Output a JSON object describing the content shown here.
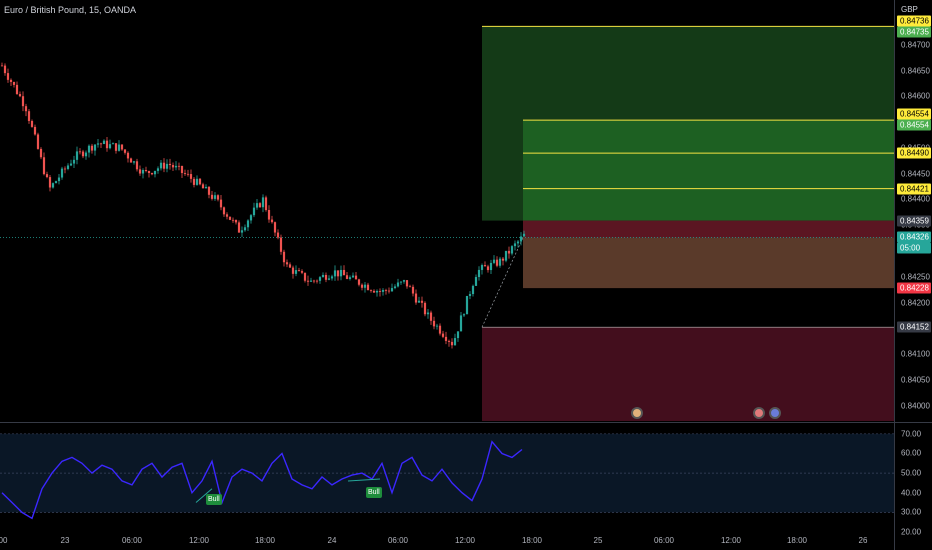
{
  "header": {
    "symbol_title": "Euro / British Pound, 15, OANDA",
    "currency_label": "GBP"
  },
  "price_axis": {
    "ticks": [
      "0.84700",
      "0.84650",
      "0.84600",
      "0.84550",
      "0.84500",
      "0.84450",
      "0.84400",
      "0.84350",
      "0.84300",
      "0.84250",
      "0.84200",
      "0.84150",
      "0.84100",
      "0.84050",
      "0.84000"
    ],
    "tags": [
      {
        "text": "0.84736",
        "bg": "#ffeb3b",
        "fg": "#000000"
      },
      {
        "text": "0.84735",
        "bg": "#4caf50",
        "fg": "#ffffff"
      },
      {
        "text": "0.84554",
        "bg": "#ffeb3b",
        "fg": "#000000"
      },
      {
        "text": "0.84554",
        "bg": "#4caf50",
        "fg": "#ffffff"
      },
      {
        "text": "0.84490",
        "bg": "#ffeb3b",
        "fg": "#000000"
      },
      {
        "text": "0.84421",
        "bg": "#ffeb3b",
        "fg": "#000000"
      },
      {
        "text": "0.84359",
        "bg": "#363a45",
        "fg": "#ffffff"
      },
      {
        "text": "0.84326",
        "bg": "#26a69a",
        "fg": "#ffffff"
      },
      {
        "text": "05:00",
        "bg": "#26a69a",
        "fg": "#ffffff"
      },
      {
        "text": "0.84228",
        "bg": "#f23645",
        "fg": "#ffffff"
      },
      {
        "text": "0.84152",
        "bg": "#363a45",
        "fg": "#ffffff"
      }
    ]
  },
  "indicator_axis": {
    "ticks": [
      "70.00",
      "60.00",
      "50.00",
      "40.00",
      "30.00",
      "20.00"
    ]
  },
  "time_axis": {
    "ticks": [
      "00",
      "23",
      "06:00",
      "12:00",
      "18:00",
      "24",
      "06:00",
      "12:00",
      "18:00",
      "25",
      "06:00",
      "12:00",
      "18:00",
      "26"
    ]
  },
  "indicator": {
    "badges": [
      "Bull",
      "Bull"
    ]
  },
  "colors": {
    "up_candle": "#26a69a",
    "down_candle": "#ef5350",
    "rsi_line": "#3b27ff",
    "target_zone": "#1b4d1f",
    "stop_zone": "#4a1020",
    "level_line": "#f5e342"
  },
  "chart_data": {
    "type": "candlestick",
    "title": "Euro / British Pound, 15, OANDA",
    "ylim": [
      0.8397,
      0.8476
    ],
    "current_price": 0.84326,
    "levels": [
      0.84736,
      0.84554,
      0.8449,
      0.84421,
      0.84359,
      0.84228,
      0.84152
    ],
    "close_path": [
      {
        "t": 0,
        "c": 0.8466
      },
      {
        "t": 4,
        "c": 0.8458
      },
      {
        "t": 8,
        "c": 0.8442
      },
      {
        "t": 12,
        "c": 0.8448
      },
      {
        "t": 16,
        "c": 0.8451
      },
      {
        "t": 20,
        "c": 0.845
      },
      {
        "t": 24,
        "c": 0.8445
      },
      {
        "t": 28,
        "c": 0.8447
      },
      {
        "t": 32,
        "c": 0.8444
      },
      {
        "t": 36,
        "c": 0.844
      },
      {
        "t": 40,
        "c": 0.8434
      },
      {
        "t": 44,
        "c": 0.844
      },
      {
        "t": 48,
        "c": 0.8427
      },
      {
        "t": 52,
        "c": 0.8424
      },
      {
        "t": 56,
        "c": 0.8426
      },
      {
        "t": 60,
        "c": 0.8424
      },
      {
        "t": 64,
        "c": 0.8422
      },
      {
        "t": 68,
        "c": 0.8424
      },
      {
        "t": 72,
        "c": 0.8417
      },
      {
        "t": 76,
        "c": 0.8412
      },
      {
        "t": 80,
        "c": 0.8426
      },
      {
        "t": 84,
        "c": 0.8428
      },
      {
        "t": 88,
        "c": 0.8433
      }
    ],
    "rsi": {
      "name": "",
      "ylim": [
        20,
        75
      ],
      "bands": [
        30,
        50,
        70
      ],
      "values": [
        40,
        35,
        30,
        27,
        42,
        50,
        56,
        58,
        55,
        50,
        54,
        52,
        46,
        44,
        52,
        55,
        48,
        53,
        55,
        40,
        46,
        56,
        35,
        48,
        52,
        50,
        46,
        55,
        60,
        47,
        44,
        42,
        48,
        44,
        47,
        49,
        50,
        47,
        55,
        40,
        55,
        58,
        49,
        46,
        52,
        45,
        40,
        36,
        47,
        66,
        60,
        58,
        62
      ]
    }
  }
}
